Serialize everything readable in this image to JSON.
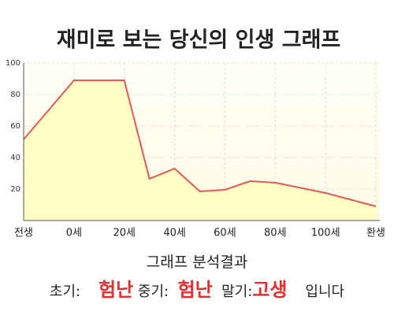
{
  "chart_data": {
    "type": "area",
    "title": "재미로 보는 당신의 인생 그래프",
    "x": [
      -20,
      0,
      20,
      30,
      40,
      50,
      60,
      70,
      80,
      100,
      120
    ],
    "values": [
      51.5,
      89,
      89,
      26.5,
      33,
      18.5,
      19.5,
      25,
      24,
      17.5,
      9
    ],
    "color": "#e05a5a",
    "fill": "#ffffc4",
    "xlim": [
      -20,
      120
    ],
    "xticks": [
      {
        "value": -20,
        "label": "전생"
      },
      {
        "value": 0,
        "label": "0세"
      },
      {
        "value": 20,
        "label": "20세"
      },
      {
        "value": 40,
        "label": "40세"
      },
      {
        "value": 60,
        "label": "60세"
      },
      {
        "value": 80,
        "label": "80세"
      },
      {
        "value": 100,
        "label": "100세"
      },
      {
        "value": 120,
        "label": "환생"
      }
    ],
    "ylim": [
      0,
      100
    ],
    "yticks": [
      20,
      40,
      60,
      80,
      100
    ],
    "grid": true
  },
  "result": {
    "heading": "그래프 분석결과",
    "early_label": "초기:",
    "early": "험난",
    "middle_label": "중기:",
    "middle": "험난",
    "late_label": "말기:",
    "late": "고생",
    "ending": "입니다"
  }
}
